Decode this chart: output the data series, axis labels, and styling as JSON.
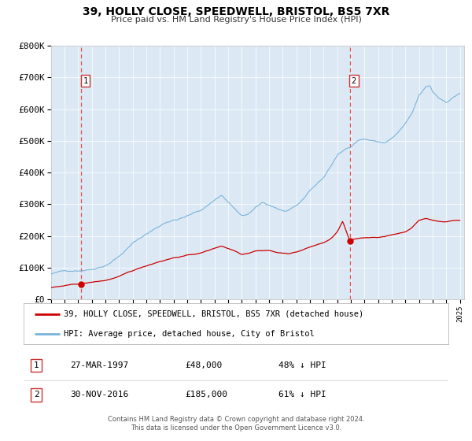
{
  "title": "39, HOLLY CLOSE, SPEEDWELL, BRISTOL, BS5 7XR",
  "subtitle": "Price paid vs. HM Land Registry's House Price Index (HPI)",
  "bg_color": "#dce9f5",
  "plot_bg_color": "#dce9f5",
  "hpi_color": "#7ab3d9",
  "price_color": "#cc0000",
  "marker_color": "#cc0000",
  "vline_color": "#e05050",
  "sale1_year": 1997.23,
  "sale1_price": 48000,
  "sale1_label": "27-MAR-1997",
  "sale1_price_str": "£48,000",
  "sale1_hpi": "48% ↓ HPI",
  "sale2_year": 2016.92,
  "sale2_price": 185000,
  "sale2_label": "30-NOV-2016",
  "sale2_price_str": "£185,000",
  "sale2_hpi": "61% ↓ HPI",
  "xmin": 1995.0,
  "xmax": 2025.3,
  "ymin": 0,
  "ymax": 800000,
  "yticks": [
    0,
    100000,
    200000,
    300000,
    400000,
    500000,
    600000,
    700000,
    800000
  ],
  "ytick_labels": [
    "£0",
    "£100K",
    "£200K",
    "£300K",
    "£400K",
    "£500K",
    "£600K",
    "£700K",
    "£800K"
  ],
  "legend1_label": "39, HOLLY CLOSE, SPEEDWELL, BRISTOL, BS5 7XR (detached house)",
  "legend2_label": "HPI: Average price, detached house, City of Bristol",
  "footer1": "Contains HM Land Registry data © Crown copyright and database right 2024.",
  "footer2": "This data is licensed under the Open Government Licence v3.0."
}
